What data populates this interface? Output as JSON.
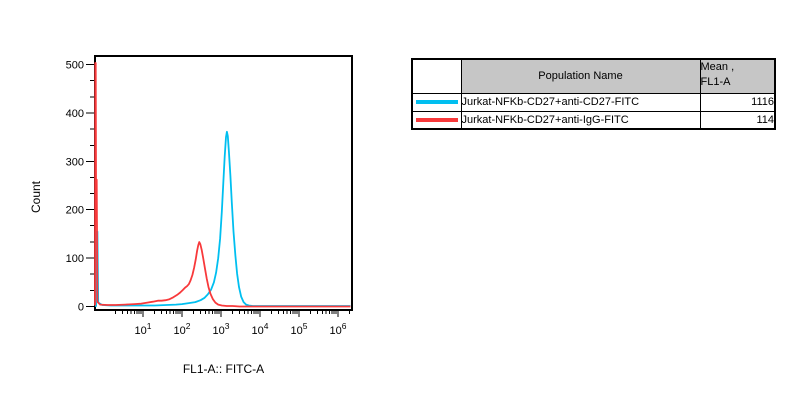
{
  "chart_data": {
    "type": "line",
    "subtype": "flow-cytometry-histogram-overlay",
    "title": "",
    "xlabel": "FL1-A:: FITC-A",
    "ylabel": "Count",
    "x_scale": "log",
    "x_log_min": -0.23,
    "x_log_max": 6.36,
    "ylim": [
      0,
      520
    ],
    "grid": false,
    "legend_position": "table-right",
    "y_major_ticks": [
      {
        "value": 0,
        "label": "0"
      },
      {
        "value": 100,
        "label": "100"
      },
      {
        "value": 200,
        "label": "200"
      },
      {
        "value": 300,
        "label": "300"
      },
      {
        "value": 400,
        "label": "400"
      },
      {
        "value": 500,
        "label": "500"
      }
    ],
    "y_minor_ticks": [
      33,
      67,
      133,
      167,
      233,
      267,
      333,
      367,
      433,
      467
    ],
    "x_major_ticks": [
      {
        "value": 10,
        "base": "10",
        "sup": "1"
      },
      {
        "value": 100,
        "base": "10",
        "sup": "2"
      },
      {
        "value": 1000,
        "base": "10",
        "sup": "3"
      },
      {
        "value": 10000,
        "base": "10",
        "sup": "4"
      },
      {
        "value": 100000,
        "base": "10",
        "sup": "5"
      },
      {
        "value": 1000000,
        "base": "10",
        "sup": "6"
      }
    ],
    "x_minor_ticks": [
      2,
      3,
      4,
      5,
      6,
      7,
      8,
      9,
      20,
      30,
      40,
      50,
      60,
      70,
      80,
      90,
      200,
      300,
      400,
      500,
      600,
      700,
      800,
      900,
      2000,
      3000,
      4000,
      5000,
      6000,
      7000,
      8000,
      9000,
      20000,
      30000,
      40000,
      50000,
      60000,
      70000,
      80000,
      90000,
      200000,
      300000,
      400000,
      500000,
      600000,
      700000,
      800000,
      900000,
      2000000
    ],
    "series": [
      {
        "name": "Jurkat-NFKb-CD27+anti-CD27-FITC",
        "color": "#00bff0",
        "mean_fl1a": 1116,
        "peak_count": 361,
        "points": [
          [
            0.59,
            1
          ],
          [
            0.63,
            1
          ],
          [
            0.64,
            155
          ],
          [
            0.68,
            155
          ],
          [
            0.71,
            8
          ],
          [
            0.9,
            3
          ],
          [
            1.5,
            2
          ],
          [
            3,
            2
          ],
          [
            6,
            2
          ],
          [
            10,
            2
          ],
          [
            20,
            2
          ],
          [
            40,
            3
          ],
          [
            70,
            4
          ],
          [
            100,
            5
          ],
          [
            150,
            7
          ],
          [
            220,
            9
          ],
          [
            300,
            13
          ],
          [
            380,
            18
          ],
          [
            460,
            25
          ],
          [
            560,
            35
          ],
          [
            660,
            50
          ],
          [
            750,
            70
          ],
          [
            850,
            100
          ],
          [
            950,
            140
          ],
          [
            1050,
            195
          ],
          [
            1150,
            255
          ],
          [
            1250,
            310
          ],
          [
            1350,
            350
          ],
          [
            1420,
            361
          ],
          [
            1500,
            352
          ],
          [
            1600,
            320
          ],
          [
            1750,
            270
          ],
          [
            1900,
            215
          ],
          [
            2100,
            155
          ],
          [
            2350,
            105
          ],
          [
            2600,
            68
          ],
          [
            2900,
            40
          ],
          [
            3300,
            20
          ],
          [
            3800,
            9
          ],
          [
            4400,
            4
          ],
          [
            5200,
            2
          ],
          [
            6500,
            1
          ],
          [
            9000,
            1
          ],
          [
            20000,
            1
          ],
          [
            100000,
            1
          ],
          [
            600000,
            1
          ],
          [
            2100000,
            1
          ]
        ]
      },
      {
        "name": "Jurkat-NFKb-CD27+anti-IgG-FITC",
        "color": "#f8393b",
        "mean_fl1a": 114,
        "peak_count": 133,
        "points": [
          [
            0.59,
            2
          ],
          [
            0.6,
            503
          ],
          [
            0.615,
            503
          ],
          [
            0.625,
            262
          ],
          [
            0.65,
            262
          ],
          [
            0.68,
            10
          ],
          [
            0.8,
            4
          ],
          [
            1.2,
            3
          ],
          [
            2,
            3
          ],
          [
            3.5,
            4
          ],
          [
            6,
            5
          ],
          [
            9,
            6
          ],
          [
            13,
            8
          ],
          [
            18,
            10
          ],
          [
            24,
            12
          ],
          [
            30,
            12
          ],
          [
            38,
            13
          ],
          [
            48,
            15
          ],
          [
            60,
            19
          ],
          [
            75,
            24
          ],
          [
            90,
            29
          ],
          [
            105,
            34
          ],
          [
            120,
            39
          ],
          [
            135,
            42
          ],
          [
            150,
            46
          ],
          [
            165,
            53
          ],
          [
            185,
            65
          ],
          [
            205,
            80
          ],
          [
            225,
            97
          ],
          [
            245,
            115
          ],
          [
            262,
            127
          ],
          [
            278,
            133
          ],
          [
            295,
            129
          ],
          [
            320,
            117
          ],
          [
            350,
            100
          ],
          [
            390,
            78
          ],
          [
            430,
            58
          ],
          [
            480,
            40
          ],
          [
            540,
            26
          ],
          [
            620,
            15
          ],
          [
            720,
            8
          ],
          [
            850,
            4
          ],
          [
            1050,
            2
          ],
          [
            1400,
            1
          ],
          [
            2000,
            1
          ],
          [
            3000,
            0
          ],
          [
            2100000,
            0
          ]
        ]
      }
    ]
  },
  "table": {
    "header": {
      "population": "Population Name",
      "mean_line1": "Mean ,",
      "mean_line2": "FL1-A"
    },
    "rows": [
      {
        "name": "Jurkat-NFKb-CD27+anti-CD27-FITC",
        "mean": "1116",
        "color": "#00bff0"
      },
      {
        "name": "Jurkat-NFKb-CD27+anti-IgG-FITC",
        "mean": "114",
        "color": "#f8393b"
      }
    ]
  },
  "colors": {
    "cyan_series": "#00bff0",
    "red_series": "#f8393b",
    "header_gray": "#c6c6c6",
    "axis_black": "#000000"
  }
}
